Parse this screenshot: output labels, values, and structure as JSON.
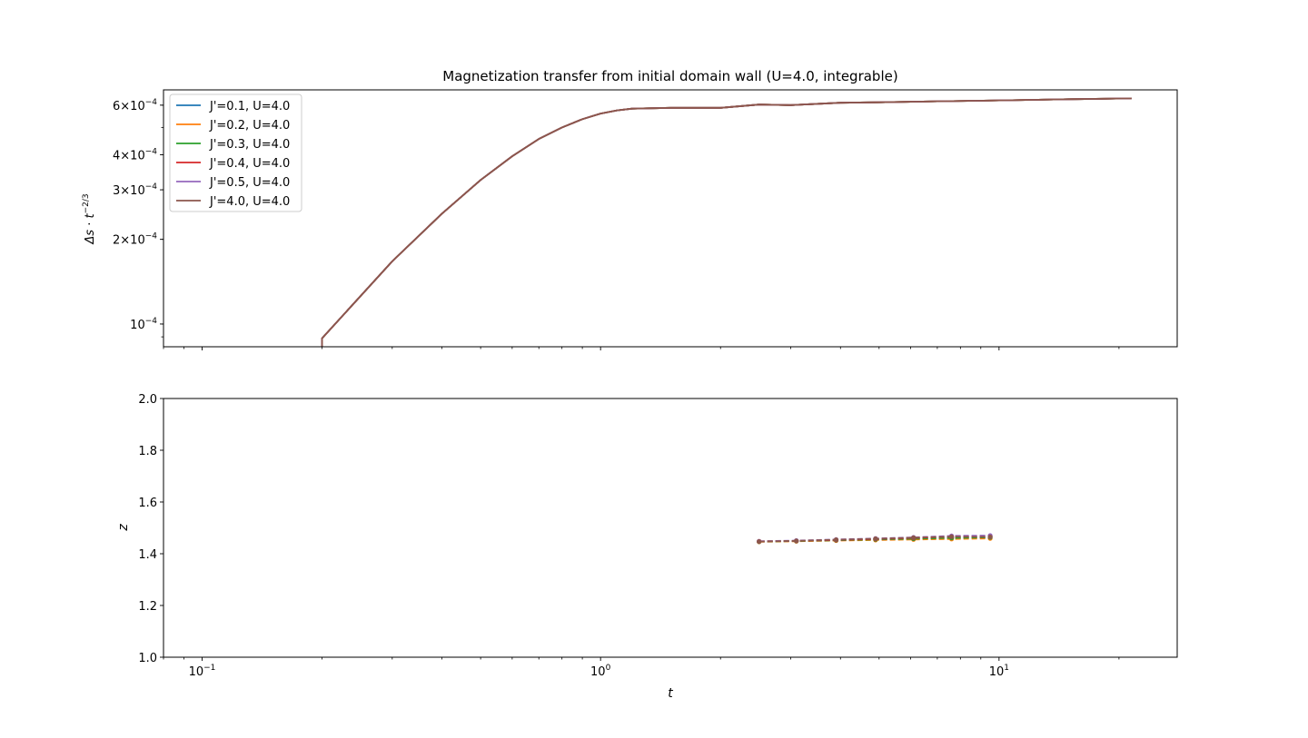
{
  "chart_data": [
    {
      "type": "line",
      "title": "Magnetization transfer from initial domain wall (U=4.0, integrable)",
      "xlabel": "",
      "ylabel": "Δs · t^(−2/3)",
      "xscale": "log",
      "yscale": "log",
      "xlim": [
        0.08,
        28
      ],
      "ylim": [
        8.3e-05,
        0.00068
      ],
      "xticks": [
        {
          "value": 0.1,
          "base": "10",
          "exp": "−1"
        },
        {
          "value": 1,
          "base": "10",
          "exp": "0"
        },
        {
          "value": 10,
          "base": "10",
          "exp": "1"
        }
      ],
      "yticks": [
        {
          "value": 0.0001,
          "mant": "",
          "base": "10",
          "exp": "−4"
        },
        {
          "value": 0.0002,
          "mant": "2",
          "base": "10",
          "exp": "−4"
        },
        {
          "value": 0.0003,
          "mant": "3",
          "base": "10",
          "exp": "−4"
        },
        {
          "value": 0.0004,
          "mant": "4",
          "base": "10",
          "exp": "−4"
        },
        {
          "value": 0.0006,
          "mant": "6",
          "base": "10",
          "exp": "−4"
        }
      ],
      "legend_position": "top-left",
      "grid": false,
      "x": [
        0.2,
        0.2,
        0.3,
        0.4,
        0.5,
        0.6,
        0.7,
        0.8,
        0.9,
        1.0,
        1.1,
        1.2,
        1.5,
        2.0,
        2.5,
        3.0,
        4.0,
        5.0,
        7.0,
        10.0,
        15.0,
        21.5
      ],
      "series": [
        {
          "name": "J'=0.1, U=4.0",
          "color": "#1f77b4",
          "values": [
            8.25e-05,
            8.9e-05,
            0.000167,
            0.000247,
            0.000325,
            0.000395,
            0.000455,
            0.0005,
            0.000535,
            0.00056,
            0.000575,
            0.000583,
            0.000587,
            0.000587,
            0.000603,
            0.0006,
            0.000612,
            0.000614,
            0.000619,
            0.000624,
            0.00063,
            0.000634
          ]
        },
        {
          "name": "J'=0.2, U=4.0",
          "color": "#ff7f0e",
          "values": [
            8.25e-05,
            8.9e-05,
            0.000167,
            0.000247,
            0.000325,
            0.000395,
            0.000455,
            0.0005,
            0.000535,
            0.00056,
            0.000575,
            0.000583,
            0.000587,
            0.000587,
            0.000603,
            0.0006,
            0.000612,
            0.000614,
            0.000619,
            0.000624,
            0.00063,
            0.000634
          ]
        },
        {
          "name": "J'=0.3, U=4.0",
          "color": "#2ca02c",
          "values": [
            8.25e-05,
            8.9e-05,
            0.000167,
            0.000247,
            0.000325,
            0.000395,
            0.000455,
            0.0005,
            0.000535,
            0.00056,
            0.000575,
            0.000583,
            0.000587,
            0.000587,
            0.000603,
            0.0006,
            0.000612,
            0.000614,
            0.000619,
            0.000624,
            0.00063,
            0.000634
          ]
        },
        {
          "name": "J'=0.4, U=4.0",
          "color": "#d62728",
          "values": [
            8.25e-05,
            8.9e-05,
            0.000167,
            0.000247,
            0.000325,
            0.000395,
            0.000455,
            0.0005,
            0.000535,
            0.00056,
            0.000575,
            0.000583,
            0.000587,
            0.000587,
            0.000603,
            0.0006,
            0.000612,
            0.000614,
            0.000619,
            0.000624,
            0.00063,
            0.000634
          ]
        },
        {
          "name": "J'=0.5, U=4.0",
          "color": "#9467bd",
          "values": [
            8.25e-05,
            8.9e-05,
            0.000167,
            0.000247,
            0.000325,
            0.000395,
            0.000455,
            0.0005,
            0.000535,
            0.00056,
            0.000575,
            0.000583,
            0.000587,
            0.000587,
            0.000603,
            0.0006,
            0.000612,
            0.000614,
            0.000619,
            0.000624,
            0.00063,
            0.000634
          ]
        },
        {
          "name": "J'=4.0, U=4.0",
          "color": "#8c564b",
          "values": [
            8.25e-05,
            8.9e-05,
            0.000167,
            0.000247,
            0.000325,
            0.000395,
            0.000455,
            0.0005,
            0.000535,
            0.00056,
            0.000575,
            0.000583,
            0.000587,
            0.000587,
            0.000603,
            0.0006,
            0.000612,
            0.000614,
            0.000619,
            0.000624,
            0.00063,
            0.000634
          ]
        }
      ]
    },
    {
      "type": "line",
      "title": "",
      "xlabel": "t",
      "ylabel": "z",
      "xscale": "log",
      "yscale": "linear",
      "xlim": [
        0.08,
        28
      ],
      "ylim": [
        1.0,
        2.0
      ],
      "yticks": [
        1.0,
        1.2,
        1.4,
        1.6,
        1.8,
        2.0
      ],
      "ytick_labels": [
        "1.0",
        "1.2",
        "1.4",
        "1.6",
        "1.8",
        "2.0"
      ],
      "line_style": "dashed",
      "markers": true,
      "x": [
        2.5,
        3.1,
        3.9,
        4.9,
        6.1,
        7.6,
        9.5
      ],
      "series": [
        {
          "color": "#1f77b4",
          "values": [
            1.447,
            1.449,
            1.453,
            1.456,
            1.459,
            1.461,
            1.463
          ]
        },
        {
          "color": "#ff7f0e",
          "values": [
            1.446,
            1.448,
            1.451,
            1.453,
            1.455,
            1.457,
            1.459
          ]
        },
        {
          "color": "#2ca02c",
          "values": [
            1.447,
            1.449,
            1.452,
            1.455,
            1.458,
            1.461,
            1.463
          ]
        },
        {
          "color": "#d62728",
          "values": [
            1.448,
            1.45,
            1.453,
            1.457,
            1.461,
            1.466,
            1.468
          ]
        },
        {
          "color": "#9467bd",
          "values": [
            1.448,
            1.451,
            1.455,
            1.459,
            1.463,
            1.469,
            1.47
          ]
        },
        {
          "color": "#8c564b",
          "values": [
            1.447,
            1.45,
            1.454,
            1.458,
            1.462,
            1.466,
            1.465
          ]
        }
      ]
    }
  ]
}
